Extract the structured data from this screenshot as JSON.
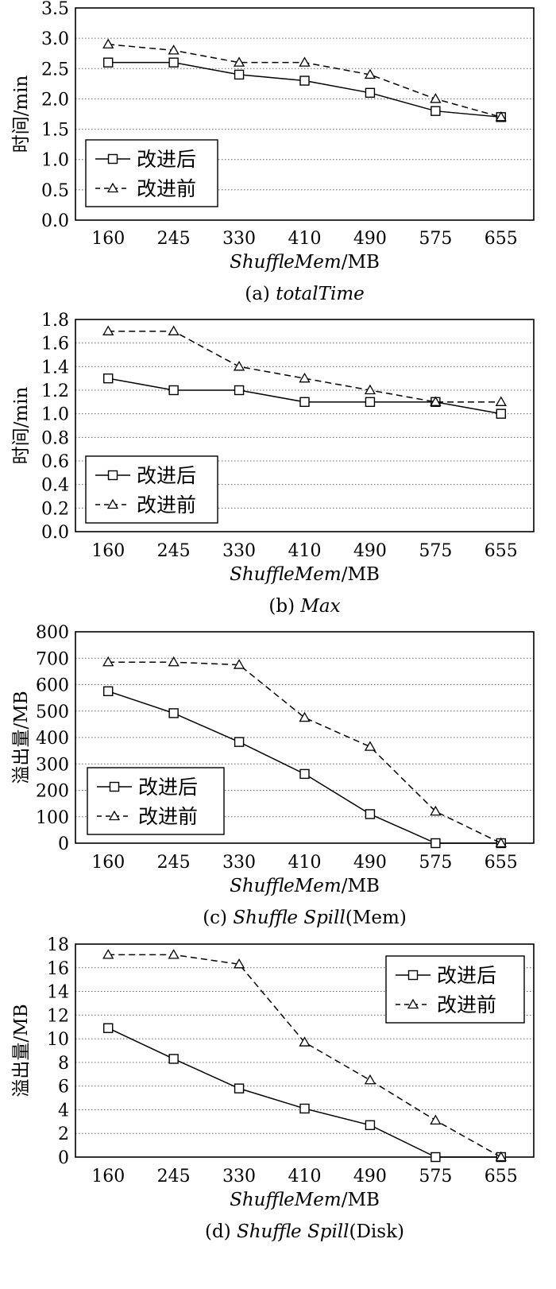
{
  "chart_data": [
    {
      "type": "line",
      "caption": {
        "prefix": "(a) ",
        "main": "totalTime",
        "suffix": ""
      },
      "ylabel": "时间/min",
      "xlabel": {
        "main": "ShuffleMem",
        "suffix": "/MB"
      },
      "categories": [
        "160",
        "245",
        "330",
        "410",
        "490",
        "575",
        "655"
      ],
      "ylim": [
        0,
        3.5
      ],
      "yticks": [
        "0.0",
        "0.5",
        "1.0",
        "1.5",
        "2.0",
        "2.5",
        "3.0",
        "3.5"
      ],
      "grid": "horizontal-dotted",
      "legend_position": "lower-left",
      "series": [
        {
          "name": "改进后",
          "marker": "square",
          "dash": "solid",
          "values": [
            2.6,
            2.6,
            2.4,
            2.3,
            2.1,
            1.8,
            1.7
          ]
        },
        {
          "name": "改进前",
          "marker": "triangle",
          "dash": "dashed",
          "values": [
            2.9,
            2.8,
            2.6,
            2.6,
            2.4,
            2.0,
            1.7
          ]
        }
      ]
    },
    {
      "type": "line",
      "caption": {
        "prefix": "(b) ",
        "main": "Max",
        "suffix": ""
      },
      "ylabel": "时间/min",
      "xlabel": {
        "main": "ShuffleMem",
        "suffix": "/MB"
      },
      "categories": [
        "160",
        "245",
        "330",
        "410",
        "490",
        "575",
        "655"
      ],
      "ylim": [
        0,
        1.8
      ],
      "yticks": [
        "0.0",
        "0.2",
        "0.4",
        "0.6",
        "0.8",
        "1.0",
        "1.2",
        "1.4",
        "1.6",
        "1.8"
      ],
      "grid": "horizontal-dotted",
      "legend_position": "lower-left",
      "series": [
        {
          "name": "改进后",
          "marker": "square",
          "dash": "solid",
          "values": [
            1.3,
            1.2,
            1.2,
            1.1,
            1.1,
            1.1,
            1.0
          ]
        },
        {
          "name": "改进前",
          "marker": "triangle",
          "dash": "dashed",
          "values": [
            1.7,
            1.7,
            1.4,
            1.3,
            1.2,
            1.1,
            1.1
          ]
        }
      ]
    },
    {
      "type": "line",
      "caption": {
        "prefix": "(c) ",
        "main": "Shuffle Spill",
        "suffix": "(Mem)"
      },
      "ylabel": "溢出量/MB",
      "xlabel": {
        "main": "ShuffleMem",
        "suffix": "/MB"
      },
      "categories": [
        "160",
        "245",
        "330",
        "410",
        "490",
        "575",
        "655"
      ],
      "ylim": [
        0,
        800
      ],
      "yticks": [
        "0",
        "100",
        "200",
        "300",
        "400",
        "500",
        "600",
        "700",
        "800"
      ],
      "grid": "horizontal-dotted",
      "legend_position": "lower-left",
      "series": [
        {
          "name": "改进后",
          "marker": "square",
          "dash": "solid",
          "values": [
            575,
            492,
            383,
            262,
            110,
            0,
            0
          ]
        },
        {
          "name": "改进前",
          "marker": "triangle",
          "dash": "dashed",
          "values": [
            685,
            685,
            675,
            475,
            365,
            120,
            0
          ]
        }
      ]
    },
    {
      "type": "line",
      "caption": {
        "prefix": "(d) ",
        "main": "Shuffle Spill",
        "suffix": "(Disk)"
      },
      "ylabel": "溢出量/MB",
      "xlabel": {
        "main": "ShuffleMem",
        "suffix": "/MB"
      },
      "categories": [
        "160",
        "245",
        "330",
        "410",
        "490",
        "575",
        "655"
      ],
      "ylim": [
        0,
        18
      ],
      "yticks": [
        "0",
        "2",
        "4",
        "6",
        "8",
        "10",
        "12",
        "14",
        "16",
        "18"
      ],
      "grid": "horizontal-dotted",
      "legend_position": "upper-right",
      "series": [
        {
          "name": "改进后",
          "marker": "square",
          "dash": "solid",
          "values": [
            10.9,
            8.3,
            5.8,
            4.1,
            2.7,
            0,
            0
          ]
        },
        {
          "name": "改进前",
          "marker": "triangle",
          "dash": "dashed",
          "values": [
            17.1,
            17.1,
            16.3,
            9.7,
            6.5,
            3.1,
            0
          ]
        }
      ]
    }
  ]
}
